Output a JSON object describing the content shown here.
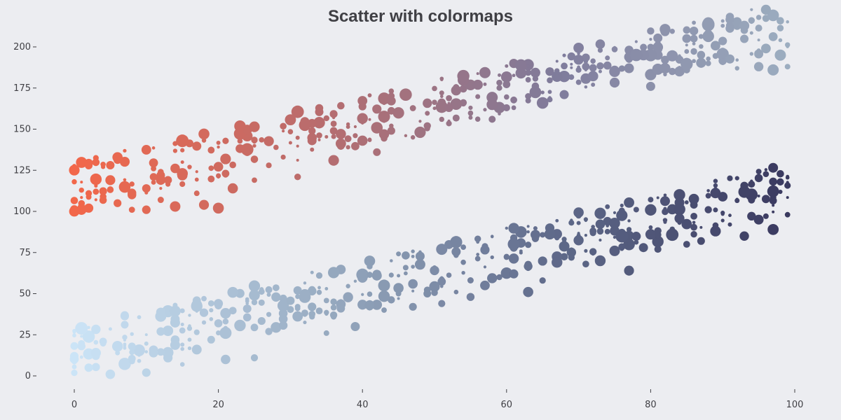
{
  "chart_data": {
    "type": "scatter",
    "title": "Scatter with colormaps",
    "xlabel": "",
    "ylabel": "",
    "xlim": [
      -2.5,
      102
    ],
    "ylim": [
      -5,
      205
    ],
    "x_ticks": [
      0,
      20,
      40,
      60,
      80,
      100
    ],
    "y_ticks": [
      0,
      25,
      50,
      75,
      100,
      125,
      150,
      175,
      200
    ],
    "grid": false,
    "legend": "none",
    "series": [
      {
        "points": "~400 points, y ≈ 100 + x + noise(0..30); size varies; color follows x",
        "colormap": [
          "#f2674a",
          "#b96c6d",
          "#7f7b9b",
          "#9dafc1"
        ],
        "points_sample": [
          [
            0,
            100
          ],
          [
            0,
            118
          ],
          [
            0,
            125
          ],
          [
            1,
            101
          ],
          [
            2,
            102
          ],
          [
            3,
            112
          ],
          [
            4,
            109
          ],
          [
            5,
            119
          ],
          [
            6,
            105
          ],
          [
            8,
            101
          ],
          [
            8,
            110
          ],
          [
            10,
            101
          ],
          [
            10,
            114
          ],
          [
            12,
            107
          ],
          [
            14,
            103
          ],
          [
            15,
            123
          ],
          [
            17,
            111
          ],
          [
            18,
            104
          ],
          [
            20,
            102
          ],
          [
            22,
            114
          ],
          [
            25,
            119
          ],
          [
            27,
            128
          ],
          [
            29,
            133
          ],
          [
            31,
            121
          ],
          [
            33,
            143
          ],
          [
            36,
            131
          ],
          [
            38,
            139
          ],
          [
            40,
            143
          ],
          [
            42,
            136
          ],
          [
            44,
            152
          ],
          [
            47,
            145
          ],
          [
            49,
            152
          ],
          [
            52,
            163
          ],
          [
            55,
            157
          ],
          [
            58,
            156
          ],
          [
            60,
            163
          ],
          [
            63,
            170
          ],
          [
            65,
            165
          ],
          [
            68,
            171
          ],
          [
            70,
            186
          ],
          [
            72,
            177
          ],
          [
            75,
            185
          ],
          [
            77,
            187
          ],
          [
            80,
            176
          ],
          [
            82,
            187
          ],
          [
            85,
            186
          ],
          [
            88,
            190
          ],
          [
            90,
            191
          ],
          [
            92,
            187
          ],
          [
            95,
            188
          ],
          [
            97,
            186
          ],
          [
            98,
            195
          ],
          [
            99,
            188
          ]
        ]
      },
      {
        "points": "~400 points, y ≈ x + noise(0..30); size varies; color follows x",
        "colormap": [
          "#cbe4f7",
          "#9aadc3",
          "#5f6a8a",
          "#39385e"
        ],
        "points_sample": [
          [
            0,
            12
          ],
          [
            1,
            18
          ],
          [
            2,
            5
          ],
          [
            3,
            14
          ],
          [
            5,
            1
          ],
          [
            6,
            18
          ],
          [
            8,
            9
          ],
          [
            10,
            2
          ],
          [
            11,
            14
          ],
          [
            13,
            11
          ],
          [
            15,
            7
          ],
          [
            17,
            16
          ],
          [
            19,
            22
          ],
          [
            21,
            10
          ],
          [
            23,
            30
          ],
          [
            25,
            11
          ],
          [
            27,
            27
          ],
          [
            29,
            38
          ],
          [
            31,
            41
          ],
          [
            33,
            42
          ],
          [
            35,
            26
          ],
          [
            37,
            41
          ],
          [
            39,
            30
          ],
          [
            41,
            43
          ],
          [
            43,
            40
          ],
          [
            45,
            50
          ],
          [
            47,
            42
          ],
          [
            49,
            50
          ],
          [
            51,
            44
          ],
          [
            53,
            51
          ],
          [
            55,
            48
          ],
          [
            57,
            55
          ],
          [
            59,
            60
          ],
          [
            61,
            62
          ],
          [
            63,
            51
          ],
          [
            65,
            58
          ],
          [
            67,
            69
          ],
          [
            69,
            72
          ],
          [
            71,
            68
          ],
          [
            73,
            70
          ],
          [
            75,
            76
          ],
          [
            77,
            64
          ],
          [
            79,
            78
          ],
          [
            81,
            77
          ],
          [
            83,
            84
          ],
          [
            85,
            80
          ],
          [
            87,
            82
          ],
          [
            89,
            88
          ],
          [
            91,
            92
          ],
          [
            93,
            85
          ],
          [
            95,
            95
          ],
          [
            97,
            89
          ],
          [
            99,
            98
          ]
        ]
      }
    ]
  }
}
